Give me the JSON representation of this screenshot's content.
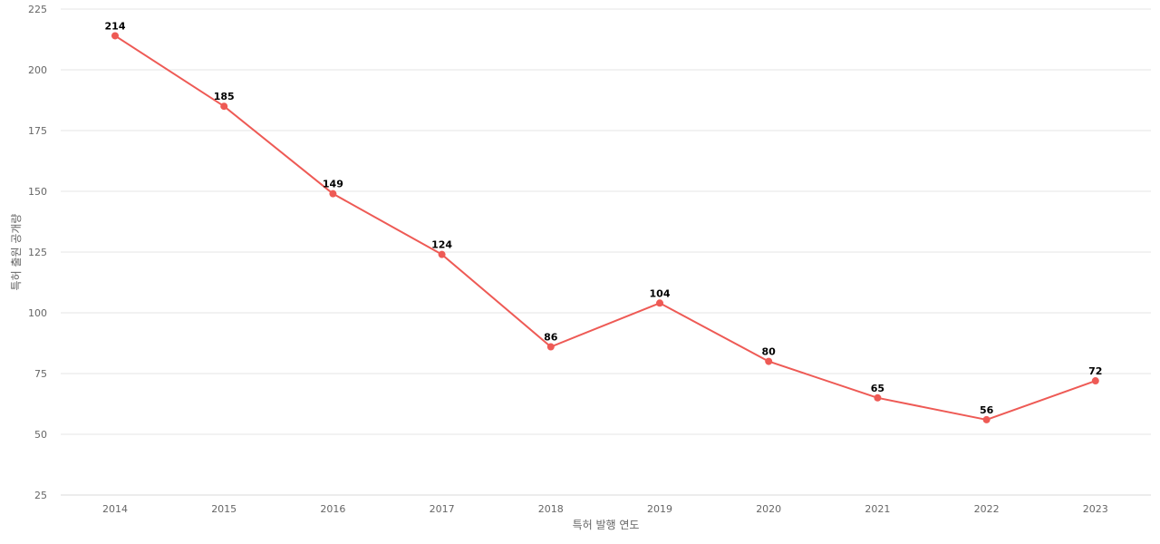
{
  "chart_data": {
    "type": "line",
    "title": "",
    "xlabel": "특허 발행 연도",
    "ylabel": "특허 출원 공개량",
    "categories": [
      "2014",
      "2015",
      "2016",
      "2017",
      "2018",
      "2019",
      "2020",
      "2021",
      "2022",
      "2023"
    ],
    "series": [
      {
        "values": [
          214,
          185,
          149,
          124,
          86,
          104,
          80,
          65,
          56,
          72
        ],
        "color": "#ee5a55"
      }
    ],
    "ylim": [
      25,
      225
    ],
    "yticks": [
      25,
      50,
      75,
      100,
      125,
      150,
      175,
      200,
      225
    ],
    "grid": true,
    "legend": "none"
  }
}
